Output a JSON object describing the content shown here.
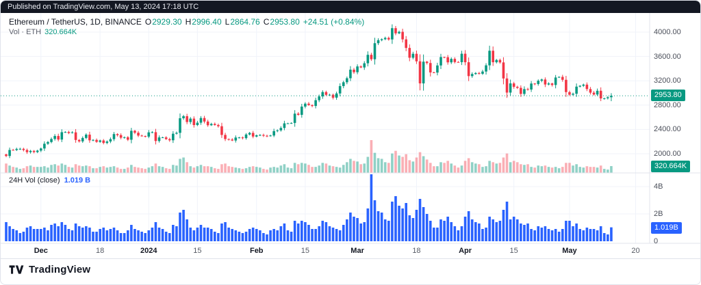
{
  "published_bar": {
    "text": "Published on TradingView.com, May 13, 2024 17:18 UTC"
  },
  "header": {
    "symbol_title": "Ethereum / TetherUS, 1D, BINANCE",
    "ohlc": {
      "o_label": "O",
      "o": "2929.30",
      "h_label": "H",
      "h": "2996.40",
      "l_label": "L",
      "l": "2864.76",
      "c_label": "C",
      "c": "2953.80",
      "change": "+24.51 (+0.84%)"
    },
    "volume_row": {
      "label": "Vol · ETH",
      "value": "320.664K"
    }
  },
  "price_pane": {
    "axis_labels": [
      "4000.00",
      "3600.00",
      "3200.00",
      "2800.00",
      "2400.00",
      "2000.00"
    ],
    "last_price_badge": "2953.80",
    "volume_badge": "320.664K"
  },
  "volume_pane": {
    "title": "24H Vol (close)",
    "value": "1.019 B",
    "axis_labels": [
      "4B",
      "2B",
      "0"
    ],
    "badge": "1.019B"
  },
  "time_axis": {
    "labels": [
      {
        "text": "Dec",
        "day": 10,
        "major": true
      },
      {
        "text": "18",
        "day": 27,
        "major": false
      },
      {
        "text": "2024",
        "day": 41,
        "major": true
      },
      {
        "text": "15",
        "day": 55,
        "major": false
      },
      {
        "text": "Feb",
        "day": 72,
        "major": true
      },
      {
        "text": "15",
        "day": 86,
        "major": false
      },
      {
        "text": "Mar",
        "day": 101,
        "major": true
      },
      {
        "text": "18",
        "day": 118,
        "major": false
      },
      {
        "text": "Apr",
        "day": 132,
        "major": true
      },
      {
        "text": "15",
        "day": 146,
        "major": false
      },
      {
        "text": "May",
        "day": 162,
        "major": true
      },
      {
        "text": "20",
        "day": 181,
        "major": false
      }
    ]
  },
  "footer": {
    "brand": "TradingView"
  },
  "colors": {
    "up": "#089981",
    "down": "#F23645",
    "up_translucent": "rgba(8,153,129,0.45)",
    "down_translucent": "rgba(242,54,69,0.40)",
    "vol24": "#2962FF",
    "grid": "#f0f3fa",
    "border": "#e0e3eb",
    "badge_price": "#089981",
    "badge_vol24": "#2962FF",
    "dark_bar": "#131722"
  },
  "chart_data": {
    "type": "candlestick",
    "title": "Ethereum / TetherUS, 1D, BINANCE",
    "interval": "1D",
    "start_date": "2023-11-21",
    "end_date": "2024-05-13",
    "price_axis_ticks": [
      4000,
      3600,
      3200,
      2800,
      2400,
      2000
    ],
    "volume_axis_ticks_billions": [
      4,
      2,
      0
    ],
    "first_open": 1990,
    "last": {
      "open": 2929.3,
      "high": 2996.4,
      "low": 2864.76,
      "close": 2953.8,
      "change_abs": 24.51,
      "change_pct": 0.84
    },
    "last_eth_volume": "320.664K",
    "last_24h_vol": "1.019 B",
    "closes": [
      1964,
      2063,
      2062,
      2080,
      2081,
      2062,
      2027,
      2048,
      2028,
      2052,
      2087,
      2165,
      2193,
      2243,
      2293,
      2234,
      2355,
      2358,
      2341,
      2352,
      2227,
      2204,
      2260,
      2315,
      2221,
      2228,
      2196,
      2219,
      2178,
      2202,
      2240,
      2324,
      2307,
      2264,
      2272,
      2231,
      2378,
      2346,
      2299,
      2292,
      2282,
      2352,
      2355,
      2210,
      2269,
      2269,
      2241,
      2222,
      2330,
      2344,
      2584,
      2618,
      2522,
      2578,
      2472,
      2511,
      2588,
      2530,
      2469,
      2491,
      2473,
      2453,
      2310,
      2242,
      2234,
      2218,
      2267,
      2268,
      2257,
      2317,
      2343,
      2283,
      2304,
      2309,
      2296,
      2290,
      2300,
      2373,
      2385,
      2424,
      2500,
      2500,
      2507,
      2660,
      2640,
      2776,
      2824,
      2800,
      2786,
      2881,
      2943,
      3015,
      2969,
      2970,
      2922,
      2992,
      3113,
      3176,
      3242,
      3383,
      3341,
      3436,
      3419,
      3488,
      3627,
      3554,
      3818,
      3868,
      3883,
      3905,
      3880,
      4065,
      3980,
      4005,
      3881,
      3740,
      3579,
      3644,
      3520,
      3157,
      3514,
      3492,
      3337,
      3335,
      3452,
      3590,
      3587,
      3503,
      3560,
      3508,
      3506,
      3645,
      3505,
      3277,
      3311,
      3327,
      3315,
      3352,
      3454,
      3694,
      3505,
      3543,
      3502,
      3238,
      3006,
      3157,
      3101,
      3084,
      2984,
      3064,
      3056,
      3155,
      3147,
      3201,
      3221,
      3139,
      3156,
      3131,
      3254,
      3264,
      3216,
      3014,
      2971,
      2987,
      3104,
      3118,
      3137,
      3064,
      3005,
      2974,
      3036,
      2910,
      2913,
      2929,
      2953.8
    ],
    "vol_24h_billions": [
      1.4,
      1.1,
      0.9,
      0.8,
      0.6,
      0.7,
      1.0,
      1.1,
      0.9,
      0.9,
      0.9,
      1.0,
      0.8,
      1.2,
      1.3,
      1.1,
      1.4,
      1.2,
      0.9,
      0.8,
      1.3,
      1.1,
      1.0,
      1.1,
      1.0,
      0.7,
      0.7,
      0.9,
      1.0,
      0.8,
      0.9,
      1.0,
      0.8,
      0.6,
      0.6,
      0.8,
      1.2,
      0.9,
      0.8,
      0.7,
      0.6,
      0.8,
      1.0,
      1.4,
      1.0,
      0.9,
      0.7,
      0.6,
      1.2,
      1.1,
      2.1,
      2.3,
      1.6,
      1.0,
      0.8,
      1.0,
      1.2,
      1.0,
      1.0,
      0.9,
      0.7,
      0.6,
      1.3,
      1.4,
      1.0,
      0.9,
      0.8,
      0.7,
      0.6,
      0.7,
      0.9,
      1.0,
      0.9,
      0.8,
      0.6,
      0.5,
      0.8,
      0.9,
      0.8,
      1.1,
      1.3,
      0.8,
      0.7,
      1.5,
      1.3,
      1.5,
      1.4,
      1.2,
      0.9,
      0.9,
      1.1,
      1.5,
      1.4,
      1.1,
      1.0,
      0.9,
      0.8,
      1.2,
      1.6,
      2.1,
      1.8,
      1.7,
      1.3,
      1.4,
      2.4,
      4.9,
      3.0,
      2.2,
      2.1,
      1.6,
      1.5,
      2.9,
      3.3,
      2.6,
      2.4,
      2.8,
      1.9,
      1.7,
      2.3,
      3.1,
      2.5,
      2.0,
      1.5,
      1.0,
      1.0,
      1.6,
      1.5,
      1.8,
      1.4,
      1.1,
      0.8,
      1.1,
      1.8,
      2.2,
      1.6,
      1.4,
      1.3,
      0.9,
      1.0,
      1.8,
      1.6,
      1.4,
      1.5,
      2.3,
      2.9,
      1.6,
      1.8,
      1.6,
      1.3,
      1.2,
      1.3,
      0.9,
      0.8,
      1.1,
      1.0,
      1.1,
      0.9,
      0.8,
      0.9,
      0.7,
      0.9,
      1.5,
      1.5,
      1.1,
      1.3,
      0.9,
      0.8,
      1.0,
      0.9,
      0.9,
      0.8,
      1.1,
      0.6,
      0.5,
      1.019
    ]
  }
}
